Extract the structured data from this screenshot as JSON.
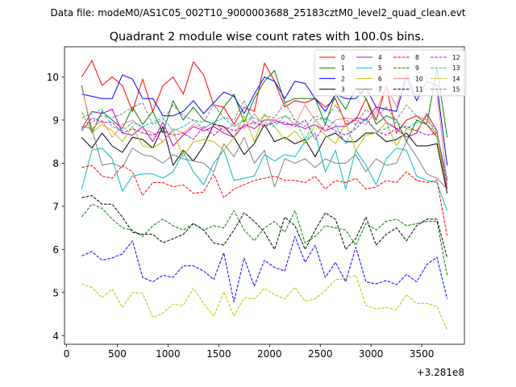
{
  "suptitle": "Data file: modeM0/AS1C05_002T10_9000003688_25183cztM0_level2_quad_clean.evt",
  "chart_data": {
    "type": "line",
    "title": "Quadrant 2 module wise count rates with 100.0s bins.",
    "xlabel": "",
    "ylabel": "",
    "x_offset_label": "+3.281e8",
    "xlim": [
      -20,
      3920
    ],
    "ylim": [
      3.8,
      10.7
    ],
    "xticks": [
      0,
      500,
      1000,
      1500,
      2000,
      2500,
      3000,
      3500
    ],
    "yticks": [
      4,
      5,
      6,
      7,
      8,
      9,
      10
    ],
    "legend_position": "top-right",
    "legend_columns": 4,
    "x": [
      150,
      250,
      350,
      450,
      550,
      650,
      750,
      850,
      950,
      1050,
      1150,
      1250,
      1350,
      1450,
      1550,
      1650,
      1750,
      1850,
      1950,
      2050,
      2150,
      2250,
      2350,
      2450,
      2550,
      2650,
      2750,
      2850,
      2950,
      3050,
      3150,
      3250,
      3350,
      3450,
      3550,
      3650,
      3750
    ],
    "series": [
      {
        "name": "0",
        "color": "#ff0000",
        "dash": "solid",
        "values": [
          10.0,
          10.38,
          9.8,
          10.0,
          9.8,
          9.2,
          9.95,
          9.2,
          9.8,
          10.0,
          9.6,
          10.35,
          10.05,
          9.35,
          9.3,
          8.9,
          9.3,
          9.2,
          10.32,
          9.9,
          9.3,
          9.45,
          9.4,
          9.5,
          9.3,
          9.5,
          8.9,
          9.0,
          9.5,
          9.0,
          9.8,
          8.7,
          9.0,
          9.1,
          8.9,
          8.6,
          7.4
        ]
      },
      {
        "name": "1",
        "color": "#008000",
        "dash": "solid",
        "values": [
          9.8,
          8.7,
          9.2,
          9.0,
          8.8,
          9.3,
          8.9,
          9.2,
          8.7,
          9.45,
          9.0,
          9.3,
          9.0,
          8.9,
          9.3,
          9.6,
          8.95,
          9.5,
          9.9,
          10.15,
          9.4,
          9.5,
          9.5,
          9.5,
          8.9,
          9.6,
          9.25,
          9.75,
          9.5,
          8.9,
          9.1,
          9.0,
          8.5,
          9.0,
          8.9,
          10.2,
          8.6
        ]
      },
      {
        "name": "2",
        "color": "#0000ff",
        "dash": "solid",
        "values": [
          9.6,
          9.55,
          9.5,
          9.5,
          10.05,
          9.95,
          9.5,
          9.5,
          9.1,
          9.1,
          9.2,
          9.45,
          9.15,
          9.4,
          9.65,
          9.55,
          9.15,
          9.6,
          10.0,
          9.9,
          9.5,
          9.9,
          9.85,
          9.5,
          9.2,
          9.6,
          9.5,
          9.5,
          9.75,
          9.3,
          9.25,
          9.2,
          10.0,
          9.45,
          9.9,
          9.8,
          7.95
        ]
      },
      {
        "name": "3",
        "color": "#000000",
        "dash": "solid",
        "values": [
          8.6,
          8.35,
          8.7,
          8.4,
          8.25,
          8.6,
          8.55,
          8.35,
          8.85,
          7.95,
          8.3,
          8.05,
          8.4,
          8.9,
          8.85,
          8.6,
          8.2,
          8.45,
          8.9,
          8.5,
          8.6,
          8.45,
          8.55,
          8.15,
          8.6,
          8.7,
          8.5,
          8.5,
          8.7,
          8.7,
          8.5,
          8.55,
          8.7,
          8.4,
          8.4,
          8.45,
          7.3
        ]
      },
      {
        "name": "4",
        "color": "#bf00bf",
        "dash": "solid",
        "values": [
          8.8,
          9.2,
          9.15,
          9.25,
          8.7,
          8.65,
          8.85,
          8.5,
          8.95,
          8.4,
          8.65,
          8.85,
          8.75,
          8.85,
          8.7,
          8.6,
          8.9,
          8.8,
          9.0,
          9.0,
          8.9,
          8.9,
          8.8,
          8.9,
          8.75,
          8.85,
          8.85,
          9.05,
          9.0,
          9.3,
          8.95,
          8.8,
          8.6,
          8.7,
          9.15,
          8.75,
          7.4
        ]
      },
      {
        "name": "5",
        "color": "#00bfbf",
        "dash": "solid",
        "values": [
          7.4,
          8.3,
          8.35,
          8.1,
          7.35,
          7.7,
          7.75,
          7.75,
          7.65,
          7.8,
          8.25,
          7.8,
          7.5,
          8.0,
          8.3,
          7.6,
          7.65,
          7.7,
          8.2,
          8.05,
          8.2,
          8.15,
          8.5,
          8.7,
          7.8,
          8.3,
          7.4,
          8.3,
          7.95,
          7.5,
          8.1,
          8.35,
          8.3,
          7.7,
          7.6,
          7.55,
          6.9
        ]
      },
      {
        "name": "6",
        "color": "#bfbf00",
        "dash": "solid",
        "values": [
          9.2,
          8.7,
          8.9,
          8.75,
          8.5,
          8.85,
          8.4,
          8.35,
          8.5,
          8.75,
          8.15,
          8.5,
          8.55,
          8.5,
          8.3,
          8.6,
          9.1,
          8.5,
          9.15,
          8.85,
          8.55,
          8.75,
          8.45,
          8.9,
          8.65,
          8.45,
          8.95,
          8.3,
          8.65,
          8.7,
          8.95,
          8.4,
          8.8,
          8.75,
          9.1,
          8.6,
          7.45
        ]
      },
      {
        "name": "7",
        "color": "#808080",
        "dash": "solid",
        "values": [
          8.85,
          8.8,
          7.95,
          8.0,
          7.9,
          8.35,
          8.2,
          8.15,
          8.0,
          8.2,
          8.1,
          8.05,
          8.0,
          7.8,
          8.45,
          8.15,
          8.6,
          8.0,
          8.3,
          7.45,
          8.1,
          8.0,
          8.1,
          7.9,
          8.1,
          8.0,
          8.0,
          8.2,
          7.8,
          8.1,
          7.95,
          8.0,
          8.5,
          8.15,
          7.75,
          7.65,
          7.4
        ]
      },
      {
        "name": "8",
        "color": "#ff0000",
        "dash": "dashed",
        "values": [
          7.9,
          7.95,
          7.7,
          7.65,
          7.95,
          7.8,
          7.25,
          7.55,
          7.55,
          7.45,
          7.5,
          7.3,
          7.33,
          7.75,
          7.2,
          7.4,
          7.5,
          7.6,
          7.65,
          7.7,
          7.6,
          7.6,
          7.55,
          7.7,
          7.4,
          7.6,
          7.55,
          7.65,
          7.4,
          7.45,
          7.6,
          7.55,
          7.8,
          7.6,
          7.55,
          7.6,
          6.3
        ]
      },
      {
        "name": "9",
        "color": "#008000",
        "dash": "dashed",
        "values": [
          6.75,
          7.05,
          6.95,
          6.7,
          6.5,
          6.45,
          6.3,
          6.55,
          6.7,
          6.55,
          6.45,
          6.6,
          6.45,
          6.55,
          6.5,
          6.9,
          6.45,
          6.2,
          6.5,
          6.65,
          6.4,
          6.9,
          6.15,
          6.3,
          6.55,
          6.5,
          6.45,
          6.1,
          6.6,
          6.45,
          6.65,
          6.7,
          6.55,
          6.6,
          6.65,
          6.65,
          5.4
        ]
      },
      {
        "name": "10",
        "color": "#ff8080",
        "dash": "solid",
        "values": [
          9.75,
          8.8,
          9.0,
          8.6,
          8.9,
          9.0,
          8.8,
          8.7,
          8.5,
          8.8,
          8.7,
          8.9,
          8.8,
          8.95,
          8.75,
          8.9,
          8.8,
          9.15,
          8.85,
          9.0,
          9.1,
          8.9,
          9.35,
          9.0,
          8.75,
          9.0,
          9.05,
          9.0,
          8.9,
          9.2,
          9.8,
          9.3,
          10.1,
          9.55,
          9.75,
          9.65,
          7.5
        ]
      },
      {
        "name": "11",
        "color": "#000000",
        "dash": "dashed",
        "values": [
          7.2,
          7.25,
          7.05,
          7.05,
          6.75,
          6.4,
          6.35,
          6.35,
          6.15,
          6.25,
          6.35,
          6.6,
          6.45,
          6.15,
          6.1,
          6.45,
          6.85,
          6.65,
          6.4,
          6.0,
          6.75,
          6.55,
          6.0,
          6.45,
          6.85,
          6.7,
          6.0,
          6.25,
          6.75,
          6.1,
          6.35,
          6.5,
          6.2,
          6.55,
          6.7,
          6.7,
          5.8
        ]
      },
      {
        "name": "12",
        "color": "#bf00bf",
        "dash": "dashed",
        "values": [
          8.75,
          9.05,
          8.95,
          8.95,
          8.7,
          8.8,
          8.7,
          8.65,
          8.75,
          8.65,
          8.7,
          8.55,
          8.85,
          8.65,
          8.85,
          8.75,
          8.85,
          8.95,
          8.85,
          8.95,
          8.95,
          8.85,
          9.0,
          8.55,
          8.9,
          8.75,
          8.65,
          8.8,
          9.05,
          8.75,
          8.65,
          8.8,
          8.85,
          8.75,
          8.65,
          8.7,
          7.6
        ]
      },
      {
        "name": "13",
        "color": "#00bfbf",
        "dash": "dashed",
        "values": [
          9.05,
          9.15,
          9.25,
          8.85,
          8.75,
          8.95,
          8.85,
          8.95,
          9.05,
          8.75,
          8.85,
          9.0,
          8.8,
          8.95,
          9.05,
          8.85,
          9.0,
          9.05,
          8.95,
          8.85,
          9.1,
          9.0,
          8.55,
          9.0,
          9.05,
          8.9,
          8.45,
          8.9,
          9.0,
          8.75,
          8.8,
          8.95,
          8.8,
          8.95,
          8.9,
          8.7,
          7.65
        ]
      },
      {
        "name": "14",
        "color": "#bfbf00",
        "dash": "dashed",
        "values": [
          5.2,
          5.12,
          4.88,
          5.08,
          4.65,
          5.0,
          4.98,
          4.42,
          4.52,
          4.73,
          4.7,
          5.1,
          4.75,
          4.45,
          5.02,
          4.45,
          4.88,
          4.85,
          5.1,
          4.95,
          4.85,
          5.12,
          4.8,
          4.85,
          5.05,
          5.3,
          5.32,
          5.4,
          4.7,
          4.62,
          4.65,
          4.6,
          4.95,
          4.75,
          4.75,
          4.68,
          4.12
        ]
      },
      {
        "name": "15",
        "color": "#808080",
        "dash": "dashed",
        "values": [
          8.8,
          8.95,
          9.1,
          9.05,
          9.15,
          9.3,
          9.4,
          8.9,
          9.0,
          9.35,
          9.1,
          9.0,
          8.95,
          9.35,
          9.05,
          9.0,
          9.45,
          8.9,
          9.1,
          9.05,
          9.4,
          9.0,
          8.85,
          9.1,
          9.0,
          9.35,
          9.0,
          8.9,
          9.25,
          9.05,
          9.3,
          9.0,
          9.35,
          9.1,
          9.0,
          8.75,
          7.45
        ]
      },
      {
        "name": "2-dashed",
        "color": "#0000ff",
        "dash": "dashed",
        "hidden_in_legend": true,
        "values": [
          5.85,
          5.95,
          5.75,
          5.8,
          5.9,
          6.2,
          5.35,
          5.25,
          5.4,
          5.35,
          5.62,
          5.62,
          5.5,
          5.3,
          5.92,
          4.78,
          5.8,
          5.15,
          5.75,
          5.58,
          5.5,
          6.3,
          5.7,
          6.1,
          5.35,
          5.7,
          5.25,
          6.05,
          5.25,
          5.2,
          5.28,
          5.18,
          5.42,
          5.25,
          5.65,
          5.82,
          4.85
        ]
      }
    ]
  }
}
